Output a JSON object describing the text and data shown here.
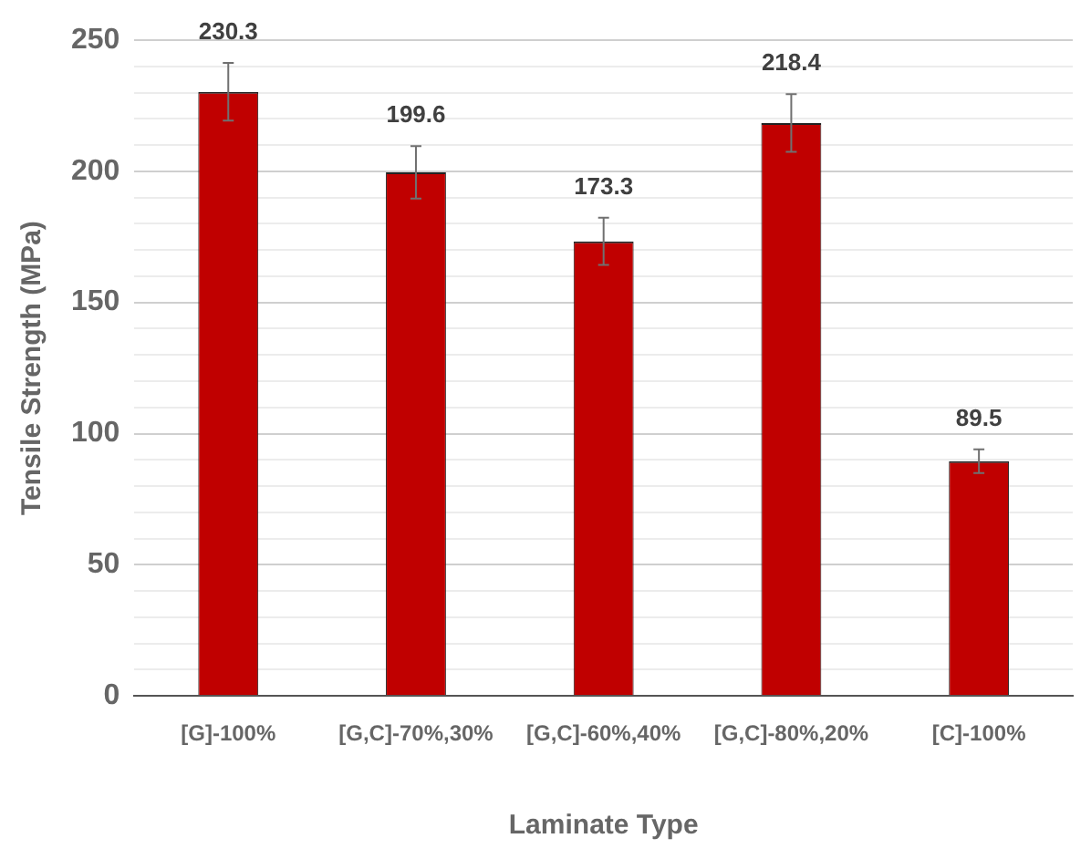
{
  "chart_data": {
    "type": "bar",
    "xlabel": "Laminate Type",
    "ylabel": "Tensile Strength (MPa)",
    "categories": [
      "[G]-100%",
      "[G,C]-70%,30%",
      "[G,C]-60%,40%",
      "[G,C]-80%,20%",
      "[C]-100%"
    ],
    "values": [
      230.3,
      199.6,
      173.3,
      218.4,
      89.5
    ],
    "errors": [
      11,
      10,
      9,
      11,
      4.5
    ],
    "color": "#c00000",
    "data_labels": true,
    "grid": "y",
    "legend": false,
    "ylim": [
      0,
      250
    ],
    "yticks": [
      0,
      {
        "value": 10,
        "label": null
      },
      {
        "value": 20,
        "label": null
      },
      {
        "value": 30,
        "label": null
      },
      {
        "value": 40,
        "label": null
      },
      50,
      {
        "value": 60,
        "label": null
      },
      {
        "value": 70,
        "label": null
      },
      {
        "value": 80,
        "label": null
      },
      {
        "value": 90,
        "label": null
      },
      100,
      {
        "value": 110,
        "label": null
      },
      {
        "value": 120,
        "label": null
      },
      {
        "value": 130,
        "label": null
      },
      {
        "value": 140,
        "label": null
      },
      150,
      {
        "value": 160,
        "label": null
      },
      {
        "value": 170,
        "label": null
      },
      {
        "value": 180,
        "label": null
      },
      {
        "value": 190,
        "label": null
      },
      200,
      {
        "value": 210,
        "label": null
      },
      {
        "value": 220,
        "label": null
      },
      {
        "value": 230,
        "label": null
      },
      {
        "value": 240,
        "label": null
      },
      250
    ]
  }
}
